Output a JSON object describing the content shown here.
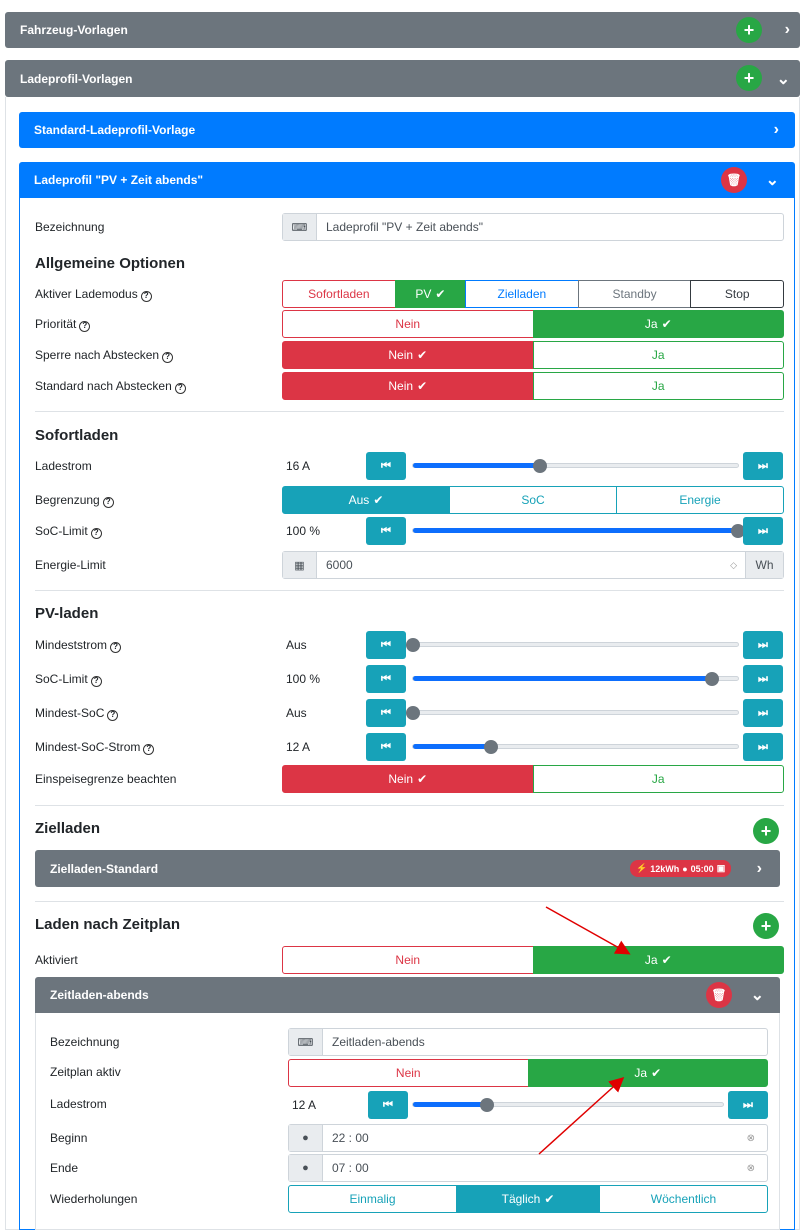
{
  "panels": {
    "vehicle_templates": "Fahrzeug-Vorlagen",
    "charge_profile_templates": "Ladeprofil-Vorlagen",
    "standard_template": "Standard-Ladeprofil-Vorlage",
    "profile_title": "Ladeprofil \"PV + Zeit abends\""
  },
  "profile": {
    "name_label": "Bezeichnung",
    "name_value": "Ladeprofil \"PV + Zeit abends\"",
    "general_title": "Allgemeine Optionen",
    "mode_label": "Aktiver Lademodus",
    "modes": [
      "Sofortladen",
      "PV",
      "Zielladen",
      "Standby",
      "Stop"
    ],
    "priority_label": "Priorität",
    "lock_label": "Sperre nach Abstecken",
    "default_label": "Standard nach Abstecken",
    "no": "Nein",
    "yes": "Ja"
  },
  "instant": {
    "title": "Sofortladen",
    "current_label": "Ladestrom",
    "current_value": "16 A",
    "current_fraction": 0.39,
    "limit_label": "Begrenzung",
    "limit_options": [
      "Aus",
      "SoC",
      "Energie"
    ],
    "soc_label": "SoC-Limit",
    "soc_value": "100 %",
    "soc_fraction": 1.0,
    "energy_label": "Energie-Limit",
    "energy_value": "6000",
    "energy_unit": "Wh"
  },
  "pv": {
    "title": "PV-laden",
    "min_current_label": "Mindeststrom",
    "min_current_value": "Aus",
    "min_current_fraction": 0.0,
    "soc_label": "SoC-Limit",
    "soc_value": "100 %",
    "soc_fraction": 0.92,
    "min_soc_label": "Mindest-SoC",
    "min_soc_value": "Aus",
    "min_soc_fraction": 0.0,
    "min_soc_current_label": "Mindest-SoC-Strom",
    "min_soc_current_value": "12 A",
    "min_soc_current_fraction": 0.24,
    "feed_in_label": "Einspeisegrenze beachten"
  },
  "target": {
    "title": "Zielladen",
    "standard_label": "Zielladen-Standard",
    "badge_energy": "12kWh",
    "badge_time": "05:00"
  },
  "schedule": {
    "title": "Laden nach Zeitplan",
    "active_label": "Aktiviert",
    "plan_title": "Zeitladen-abends",
    "name_label": "Bezeichnung",
    "name_value": "Zeitladen-abends",
    "plan_active_label": "Zeitplan aktiv",
    "current_label": "Ladestrom",
    "current_value": "12 A",
    "current_fraction": 0.24,
    "begin_label": "Beginn",
    "begin_value": "22 : 00",
    "end_label": "Ende",
    "end_value": "07 : 00",
    "repeat_label": "Wiederholungen",
    "repeat_options": [
      "Einmalig",
      "Täglich",
      "Wöchentlich"
    ]
  }
}
